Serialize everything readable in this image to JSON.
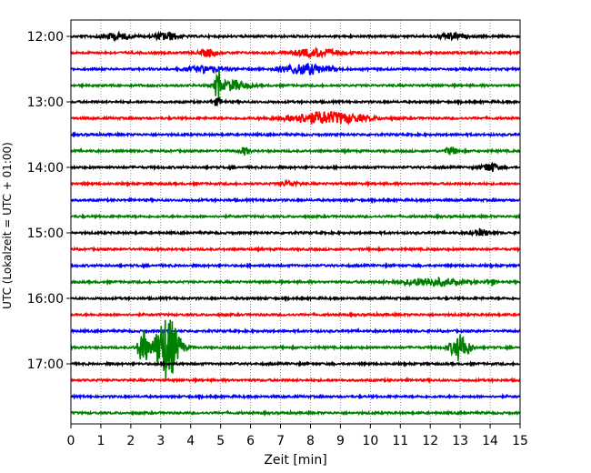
{
  "chart_data": {
    "type": "line",
    "title": "",
    "xlabel": "Zeit  [min]",
    "ylabel": "UTC (Lokalzeit = UTC + 01:00)",
    "xlim": [
      0,
      15
    ],
    "x_ticks": [
      0,
      1,
      2,
      3,
      4,
      5,
      6,
      7,
      8,
      9,
      10,
      11,
      12,
      13,
      14,
      15
    ],
    "y_tick_labels": [
      "12:00",
      "13:00",
      "14:00",
      "15:00",
      "16:00",
      "17:00"
    ],
    "y_tick_trace_index": [
      0,
      4,
      8,
      12,
      16,
      20
    ],
    "trace_interval_min": 15,
    "trace_colors": [
      "#000000",
      "#ff0000",
      "#0000ff",
      "#008000"
    ],
    "grid": "vertical dotted",
    "traces": [
      {
        "start": "12:00",
        "color": "#000000",
        "events": [
          {
            "t": 3.2,
            "amp": 0.25,
            "dur": 0.8
          },
          {
            "t": 1.5,
            "amp": 0.2,
            "dur": 1.0
          },
          {
            "t": 12.7,
            "amp": 0.2,
            "dur": 0.8
          }
        ]
      },
      {
        "start": "12:15",
        "color": "#ff0000",
        "events": [
          {
            "t": 4.6,
            "amp": 0.25,
            "dur": 0.6
          },
          {
            "t": 8.2,
            "amp": 0.25,
            "dur": 1.5
          }
        ]
      },
      {
        "start": "12:30",
        "color": "#0000ff",
        "events": [
          {
            "t": 7.8,
            "amp": 0.35,
            "dur": 1.5
          },
          {
            "t": 4.5,
            "amp": 0.2,
            "dur": 1.2
          }
        ]
      },
      {
        "start": "12:45",
        "color": "#008000",
        "events": [
          {
            "t": 4.9,
            "amp": 1.4,
            "dur": 0.15
          },
          {
            "t": 5.4,
            "amp": 0.35,
            "dur": 1.0
          }
        ]
      },
      {
        "start": "13:00",
        "color": "#000000",
        "events": [
          {
            "t": 4.9,
            "amp": 0.2,
            "dur": 0.4
          }
        ]
      },
      {
        "start": "13:15",
        "color": "#ff0000",
        "events": [
          {
            "t": 8.5,
            "amp": 0.4,
            "dur": 2.5
          }
        ]
      },
      {
        "start": "13:30",
        "color": "#0000ff",
        "events": []
      },
      {
        "start": "13:45",
        "color": "#008000",
        "events": [
          {
            "t": 5.8,
            "amp": 0.25,
            "dur": 0.3
          },
          {
            "t": 12.7,
            "amp": 0.25,
            "dur": 0.4
          }
        ]
      },
      {
        "start": "14:00",
        "color": "#000000",
        "events": [
          {
            "t": 14.0,
            "amp": 0.3,
            "dur": 0.5
          }
        ]
      },
      {
        "start": "14:15",
        "color": "#ff0000",
        "events": [
          {
            "t": 7.3,
            "amp": 0.15,
            "dur": 0.6
          }
        ]
      },
      {
        "start": "14:30",
        "color": "#0000ff",
        "events": []
      },
      {
        "start": "14:45",
        "color": "#008000",
        "events": []
      },
      {
        "start": "15:00",
        "color": "#000000",
        "events": [
          {
            "t": 13.7,
            "amp": 0.2,
            "dur": 0.6
          }
        ]
      },
      {
        "start": "15:15",
        "color": "#ff0000",
        "events": []
      },
      {
        "start": "15:30",
        "color": "#0000ff",
        "events": []
      },
      {
        "start": "15:45",
        "color": "#008000",
        "events": [
          {
            "t": 12.0,
            "amp": 0.25,
            "dur": 2.0
          },
          {
            "t": 14.0,
            "amp": 0.2,
            "dur": 0.3
          }
        ]
      },
      {
        "start": "16:00",
        "color": "#000000",
        "events": []
      },
      {
        "start": "16:15",
        "color": "#ff0000",
        "events": []
      },
      {
        "start": "16:30",
        "color": "#0000ff",
        "events": []
      },
      {
        "start": "16:45",
        "color": "#008000",
        "events": [
          {
            "t": 2.4,
            "amp": 1.3,
            "dur": 0.3
          },
          {
            "t": 3.2,
            "amp": 2.2,
            "dur": 0.8
          },
          {
            "t": 13.0,
            "amp": 0.9,
            "dur": 0.6
          }
        ]
      },
      {
        "start": "17:00",
        "color": "#000000",
        "events": []
      },
      {
        "start": "17:15",
        "color": "#ff0000",
        "events": []
      },
      {
        "start": "17:30",
        "color": "#0000ff",
        "events": []
      },
      {
        "start": "17:45",
        "color": "#008000",
        "events": []
      }
    ]
  }
}
